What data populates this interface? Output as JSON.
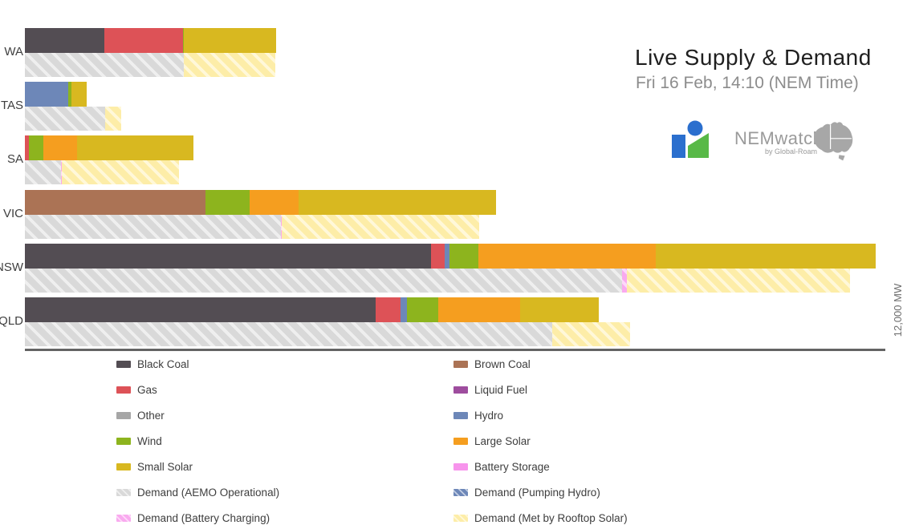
{
  "header": {
    "title": "Live Supply & Demand",
    "subtitle": "Fri 16 Feb, 14:10 (NEM Time)",
    "logo": {
      "wordmark": "NEMwatch",
      "byline": "by Global-Roam"
    }
  },
  "axis": {
    "max_label": "12,000 MW"
  },
  "colors": {
    "Black Coal": {
      "fill": "#534d53"
    },
    "Brown Coal": {
      "fill": "#ab7355"
    },
    "Gas": {
      "fill": "#dd5257"
    },
    "Liquid Fuel": {
      "fill": "#9e4d9e"
    },
    "Other": {
      "fill": "#a6a6a6"
    },
    "Hydro": {
      "fill": "#6d87b8"
    },
    "Wind": {
      "fill": "#8db41e"
    },
    "Large Solar": {
      "fill": "#f59e1f"
    },
    "Small Solar": {
      "fill": "#d8b820"
    },
    "Battery Storage": {
      "fill": "#f794ec"
    },
    "Demand (AEMO Operational)": {
      "fill": "#d9d9d9",
      "stripe": "#efefef"
    },
    "Demand (Pumping Hydro)": {
      "fill": "#6d87b8",
      "stripe": "#c2cde2"
    },
    "Demand (Battery Charging)": {
      "fill": "#f9aaef",
      "stripe": "#fdd9f9"
    },
    "Demand (Met by Rooftop Solar)": {
      "fill": "#fdeda8",
      "stripe": "#fff8d9"
    }
  },
  "chart_data": {
    "type": "bar",
    "orientation": "horizontal",
    "stacked": true,
    "unit": "MW",
    "xlim": [
      0,
      12000
    ],
    "title": "Live Supply & Demand",
    "subtitle": "Fri 16 Feb, 14:10 (NEM Time)",
    "axis_max_label": "12,000 MW",
    "regions": [
      {
        "name": "WA",
        "supply": [
          [
            "Black Coal",
            1110
          ],
          [
            "Gas",
            1090
          ],
          [
            "Wind",
            20
          ],
          [
            "Small Solar",
            1280
          ]
        ],
        "demand": [
          [
            "Demand (AEMO Operational)",
            2220
          ],
          [
            "Demand (Met by Rooftop Solar)",
            1270
          ]
        ]
      },
      {
        "name": "TAS",
        "supply": [
          [
            "Hydro",
            600
          ],
          [
            "Wind",
            45
          ],
          [
            "Small Solar",
            220
          ]
        ],
        "demand": [
          [
            "Demand (AEMO Operational)",
            1120
          ],
          [
            "Demand (Met by Rooftop Solar)",
            220
          ]
        ]
      },
      {
        "name": "SA",
        "supply": [
          [
            "Gas",
            60
          ],
          [
            "Wind",
            200
          ],
          [
            "Large Solar",
            470
          ],
          [
            "Small Solar",
            1620
          ]
        ],
        "demand": [
          [
            "Demand (AEMO Operational)",
            500
          ],
          [
            "Demand (Battery Charging)",
            20
          ],
          [
            "Demand (Met by Rooftop Solar)",
            1630
          ]
        ]
      },
      {
        "name": "VIC",
        "supply": [
          [
            "Brown Coal",
            2520
          ],
          [
            "Wind",
            620
          ],
          [
            "Large Solar",
            680
          ],
          [
            "Small Solar",
            2750
          ]
        ],
        "demand": [
          [
            "Demand (AEMO Operational)",
            3570
          ],
          [
            "Demand (Battery Charging)",
            15
          ],
          [
            "Demand (Met by Rooftop Solar)",
            2750
          ]
        ]
      },
      {
        "name": "NSW",
        "supply": [
          [
            "Black Coal",
            5660
          ],
          [
            "Gas",
            190
          ],
          [
            "Hydro",
            70
          ],
          [
            "Wind",
            410
          ],
          [
            "Large Solar",
            2470
          ],
          [
            "Small Solar",
            3070
          ]
        ],
        "demand": [
          [
            "Demand (AEMO Operational)",
            8330
          ],
          [
            "Demand (Battery Charging)",
            60
          ],
          [
            "Demand (Met by Rooftop Solar)",
            3120
          ]
        ]
      },
      {
        "name": "QLD",
        "supply": [
          [
            "Black Coal",
            4890
          ],
          [
            "Gas",
            350
          ],
          [
            "Hydro",
            90
          ],
          [
            "Wind",
            430
          ],
          [
            "Large Solar",
            1150
          ],
          [
            "Small Solar",
            1090
          ]
        ],
        "demand": [
          [
            "Demand (AEMO Operational)",
            7350
          ],
          [
            "Demand (Met by Rooftop Solar)",
            1090
          ]
        ]
      }
    ]
  },
  "legend": {
    "columns": [
      [
        "Black Coal",
        "Gas",
        "Other",
        "Wind",
        "Small Solar",
        "Demand (AEMO Operational)",
        "Demand (Battery Charging)"
      ],
      [
        "Brown Coal",
        "Liquid Fuel",
        "Hydro",
        "Large Solar",
        "Battery Storage",
        "Demand (Pumping Hydro)",
        "Demand (Met by Rooftop Solar)"
      ]
    ]
  }
}
